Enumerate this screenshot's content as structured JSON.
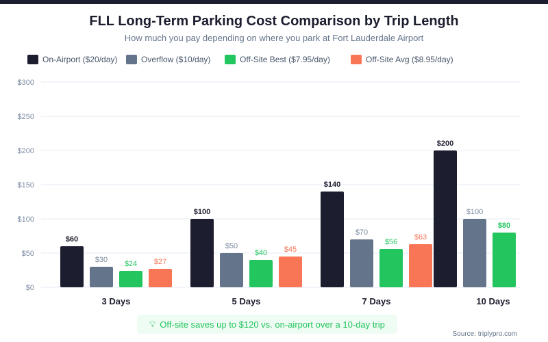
{
  "header": {
    "title": "FLL Long-Term Parking Cost Comparison by Trip Length",
    "subtitle": "How much you pay depending on where you park at Fort Lauderdale Airport"
  },
  "legend": [
    {
      "label": "On-Airport ($20/day)",
      "color": "#1c1d2e"
    },
    {
      "label": "Overflow ($10/day)",
      "color": "#64748b"
    },
    {
      "label": "Off-Site Best ($7.95/day)",
      "color": "#22c55e"
    },
    {
      "label": "Off-Site Avg ($8.95/day)",
      "color": "#f87555"
    }
  ],
  "chart_data": {
    "type": "bar",
    "title": "FLL Long-Term Parking Cost Comparison by Trip Length",
    "subtitle": "How much you pay depending on where you park at Fort Lauderdale Airport",
    "xlabel": "",
    "ylabel": "",
    "ylim": [
      0,
      300
    ],
    "yticks": [
      0,
      50,
      100,
      150,
      200,
      250,
      300
    ],
    "ytick_labels": [
      "$0",
      "$50",
      "$100",
      "$150",
      "$200",
      "$250",
      "$300"
    ],
    "grid": true,
    "legend_position": "top-left",
    "categories": [
      "3 Days",
      "5 Days",
      "7 Days",
      "10 Days"
    ],
    "series": [
      {
        "name": "On-Airport ($20/day)",
        "color": "#1c1d2e",
        "values": [
          60,
          100,
          140,
          200
        ],
        "labels": [
          "$60",
          "$100",
          "$140",
          "$200"
        ],
        "label_color": "#1c1d2e",
        "label_bold": true
      },
      {
        "name": "Overflow ($10/day)",
        "color": "#64748b",
        "values": [
          30,
          50,
          70,
          100
        ],
        "labels": [
          "$30",
          "$50",
          "$70",
          "$100"
        ],
        "label_color": "#7c8aa0",
        "label_bold": false
      },
      {
        "name": "Off-Site Best ($7.95/day)",
        "color": "#22c55e",
        "values": [
          24,
          40,
          56,
          80
        ],
        "labels": [
          "$24",
          "$40",
          "$56",
          "$80"
        ],
        "label_color": "#22c55e",
        "label_bold": false
      },
      {
        "name": "Off-Site Avg ($8.95/day)",
        "color": "#f87555",
        "values": [
          27,
          45,
          63,
          null
        ],
        "labels": [
          "$27",
          "$45",
          "$63",
          null
        ],
        "label_color": "#f87555",
        "label_bold": false
      }
    ]
  },
  "callout": {
    "icon": "lightbulb-icon",
    "text": "Off-site saves up to $120 vs. on-airport over a 10-day trip"
  },
  "footer": {
    "source": "Source: triplypro.com"
  }
}
